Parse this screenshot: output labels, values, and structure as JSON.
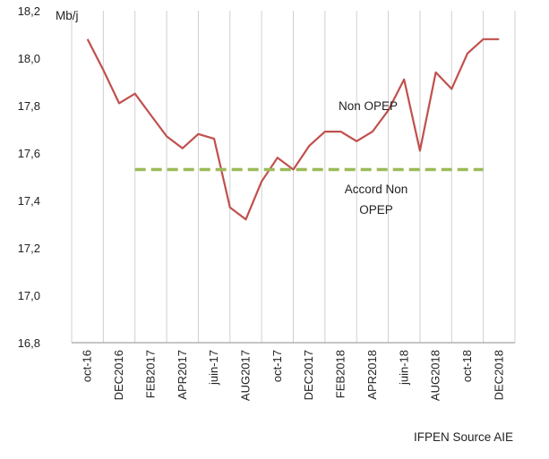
{
  "chart_data": {
    "type": "line",
    "title": "",
    "xlabel": "",
    "ylabel": "Mb/j",
    "ylim": [
      16.8,
      18.2
    ],
    "y_ticks": [
      "16,8",
      "17,0",
      "17,2",
      "17,4",
      "17,6",
      "17,8",
      "18,0",
      "18,2"
    ],
    "grid": "vertical lines at each x tick",
    "x_tick_labels": [
      "oct-16",
      "DEC2016",
      "FEB2017",
      "APR2017",
      "juin-17",
      "AUG2017",
      "oct-17",
      "DEC2017",
      "FEB2018",
      "APR2018",
      "juin-18",
      "AUG2018",
      "oct-18",
      "DEC2018"
    ],
    "series": [
      {
        "name": "Non OPEP",
        "color": "#c0504d",
        "style": "solid",
        "x": [
          0,
          0.5,
          1,
          1.5,
          2,
          2.5,
          3,
          3.5,
          4,
          4.5,
          5,
          5.5,
          6,
          6.5,
          7,
          7.5,
          8,
          8.5,
          9,
          9.5,
          10,
          10.5,
          11,
          11.5,
          12,
          12.5,
          13
        ],
        "values": [
          18.08,
          17.95,
          17.81,
          17.85,
          17.76,
          17.67,
          17.62,
          17.68,
          17.66,
          17.37,
          17.32,
          17.48,
          17.58,
          17.53,
          17.63,
          17.69,
          17.69,
          17.65,
          17.69,
          17.78,
          17.91,
          17.61,
          17.94,
          17.87,
          18.02,
          18.08,
          18.08
        ]
      },
      {
        "name": "Accord Non OPEP",
        "color": "#9bbb59",
        "style": "dashed",
        "x": [
          1.5,
          12.5
        ],
        "values": [
          17.53,
          17.53
        ]
      }
    ],
    "annotations": {
      "non_opep": "Non OPEP",
      "accord_line1": "Accord Non",
      "accord_line2": "OPEP"
    },
    "source": "IFPEN Source AIE"
  }
}
